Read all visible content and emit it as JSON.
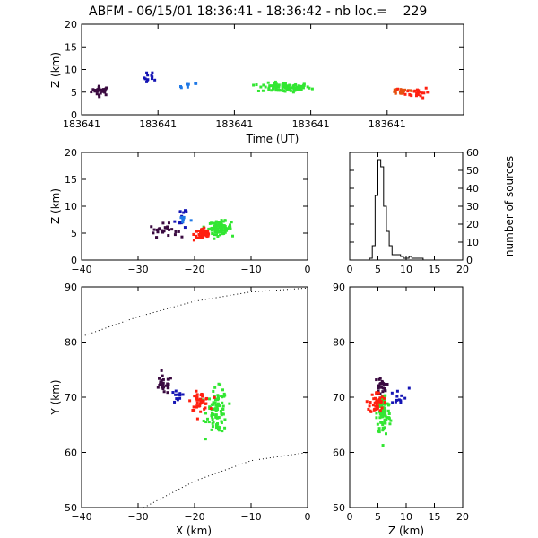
{
  "title": "ABFM - 06/15/01 18:36:41 - 18:36:42 - nb loc.=    229",
  "colors": {
    "axis": "#000000",
    "background": "#ffffff"
  },
  "chart_data": [
    {
      "id": "time-height",
      "type": "scatter",
      "xlabel": "Time (UT)",
      "ylabel": "Z (km)",
      "xlim": [
        0,
        1
      ],
      "ylim": [
        0,
        20
      ],
      "x_tick_labels": [
        "183641",
        "183641",
        "183641",
        "183641",
        "183641"
      ],
      "x_tick_values": [
        0,
        0.2,
        0.4,
        0.6,
        0.8
      ],
      "y_ticks": [
        0,
        5,
        10,
        15,
        20
      ],
      "clusters": [
        {
          "color": "#3a0a40",
          "x": 0.05,
          "y": 5.3,
          "sx": 0.012,
          "sy": 0.5,
          "n": 28
        },
        {
          "color": "#1414b4",
          "x": 0.18,
          "y": 8.2,
          "sx": 0.008,
          "sy": 0.7,
          "n": 12
        },
        {
          "color": "#1e78e6",
          "x": 0.28,
          "y": 6.3,
          "sx": 0.012,
          "sy": 0.4,
          "n": 8
        },
        {
          "color": "#32e632",
          "x": 0.53,
          "y": 6.0,
          "sx": 0.035,
          "sy": 0.5,
          "n": 90
        },
        {
          "color": "#e65010",
          "x": 0.84,
          "y": 5.2,
          "sx": 0.02,
          "sy": 0.4,
          "n": 20
        },
        {
          "color": "#ff2010",
          "x": 0.88,
          "y": 5.0,
          "sx": 0.015,
          "sy": 0.6,
          "n": 25
        }
      ]
    },
    {
      "id": "xz-plane",
      "type": "scatter",
      "ylabel": "Z (km)",
      "xlim": [
        -40,
        0
      ],
      "ylim": [
        0,
        20
      ],
      "x_ticks": [
        -40,
        -30,
        -20,
        -10,
        0
      ],
      "y_ticks": [
        0,
        5,
        10,
        15,
        20
      ],
      "clusters": [
        {
          "color": "#3a0a40",
          "x": -25.5,
          "y": 5.5,
          "sx": 1.2,
          "sy": 0.6,
          "n": 28
        },
        {
          "color": "#1414b4",
          "x": -22.5,
          "y": 8.0,
          "sx": 0.5,
          "sy": 1.2,
          "n": 12
        },
        {
          "color": "#1e78e6",
          "x": -22.0,
          "y": 7.5,
          "sx": 0.5,
          "sy": 0.5,
          "n": 8
        },
        {
          "color": "#32e632",
          "x": -15.5,
          "y": 6.0,
          "sx": 1.0,
          "sy": 0.6,
          "n": 90
        },
        {
          "color": "#ff2010",
          "x": -18.5,
          "y": 4.8,
          "sx": 0.8,
          "sy": 0.6,
          "n": 45
        }
      ]
    },
    {
      "id": "height-histogram",
      "type": "bar",
      "xlim": [
        0,
        20
      ],
      "ylim": [
        0,
        60
      ],
      "x_ticks": [
        0,
        5,
        10,
        15,
        20
      ],
      "y_ticks": [
        0,
        10,
        20,
        30,
        40,
        50,
        60
      ],
      "ylabel": "number of sources",
      "bin_edges": [
        3.5,
        4,
        4.5,
        5,
        5.5,
        6,
        6.5,
        7,
        7.5,
        8,
        8.5,
        9,
        9.5,
        10,
        10.5,
        11,
        11.5,
        12,
        12.5,
        13
      ],
      "counts": [
        1,
        8,
        36,
        56,
        52,
        30,
        16,
        8,
        3,
        3,
        3,
        2,
        1,
        1,
        2,
        1,
        1,
        1,
        1
      ]
    },
    {
      "id": "plan-view",
      "type": "scatter",
      "xlabel": "X (km)",
      "ylabel": "Y (km)",
      "xlim": [
        -40,
        0
      ],
      "ylim": [
        50,
        90
      ],
      "x_ticks": [
        -40,
        -30,
        -20,
        -10,
        0
      ],
      "y_ticks": [
        50,
        60,
        70,
        80,
        90
      ],
      "range_rings": [
        {
          "x": [
            -40,
            -30,
            -20,
            -10,
            0
          ],
          "y": [
            81,
            84.6,
            87.4,
            89.1,
            89.8
          ]
        },
        {
          "x": [
            -29,
            -20,
            -10,
            0
          ],
          "y": [
            50,
            54.8,
            58.5,
            60
          ]
        }
      ],
      "clusters": [
        {
          "color": "#3a0a40",
          "x": -25.5,
          "y": 72.2,
          "sx": 0.8,
          "sy": 0.8,
          "n": 28
        },
        {
          "color": "#1414b4",
          "x": -23.0,
          "y": 70.0,
          "sx": 0.6,
          "sy": 0.6,
          "n": 12
        },
        {
          "color": "#32e632",
          "x": -16.0,
          "y": 67.5,
          "sx": 0.9,
          "sy": 2.0,
          "n": 90
        },
        {
          "color": "#ff2010",
          "x": -19.0,
          "y": 69.3,
          "sx": 0.8,
          "sy": 0.8,
          "n": 45
        }
      ]
    },
    {
      "id": "zy-plane",
      "type": "scatter",
      "xlabel": "Z (km)",
      "xlim": [
        0,
        20
      ],
      "ylim": [
        50,
        90
      ],
      "x_ticks": [
        0,
        5,
        10,
        15,
        20
      ],
      "y_ticks": [
        50,
        60,
        70,
        80,
        90
      ],
      "clusters": [
        {
          "color": "#3a0a40",
          "x": 5.5,
          "y": 72.0,
          "sx": 0.5,
          "sy": 0.8,
          "n": 28
        },
        {
          "color": "#1414b4",
          "x": 8.5,
          "y": 70.0,
          "sx": 1.0,
          "sy": 0.8,
          "n": 12
        },
        {
          "color": "#32e632",
          "x": 6.0,
          "y": 67.0,
          "sx": 0.6,
          "sy": 2.0,
          "n": 90
        },
        {
          "color": "#ff2010",
          "x": 4.8,
          "y": 69.0,
          "sx": 0.6,
          "sy": 1.0,
          "n": 45
        }
      ]
    }
  ]
}
